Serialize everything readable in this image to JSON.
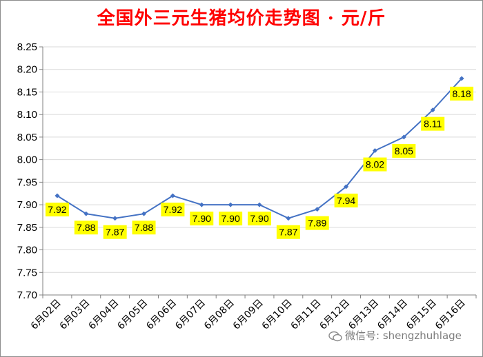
{
  "title": "全国外三元生猪均价走势图 · 元/斤",
  "watermark": "微信号: shengzhuhlage",
  "colors": {
    "title": "#ff0000",
    "line": "#4472c4",
    "label_bg": "#ffff00",
    "grid": "#d9d9d9"
  },
  "chart_data": {
    "type": "line",
    "title": "全国外三元生猪均价走势图 · 元/斤",
    "categories": [
      "6月02日",
      "6月03日",
      "6月04日",
      "6月05日",
      "6月06日",
      "6月07日",
      "6月08日",
      "6月09日",
      "6月10日",
      "6月11日",
      "6月12日",
      "6月13日",
      "6月14日",
      "6月15日",
      "6月16日"
    ],
    "series": [
      {
        "values": [
          7.92,
          7.88,
          7.87,
          7.88,
          7.92,
          7.9,
          7.9,
          7.9,
          7.87,
          7.89,
          7.94,
          8.02,
          8.05,
          8.11,
          8.18
        ]
      }
    ],
    "data_labels": [
      "7.92",
      "7.88",
      "7.87",
      "7.88",
      "7.92",
      "7.90",
      "7.90",
      "7.90",
      "7.87",
      "7.89",
      "7.94",
      "8.02",
      "8.05",
      "8.11",
      "8.18"
    ],
    "yticks": [
      "7.70",
      "7.75",
      "7.80",
      "7.85",
      "7.90",
      "7.95",
      "8.00",
      "8.05",
      "8.10",
      "8.15",
      "8.20",
      "8.25"
    ],
    "ylim": [
      7.7,
      8.25
    ],
    "grid": true,
    "legend": "none",
    "xlabel": "",
    "ylabel": ""
  }
}
